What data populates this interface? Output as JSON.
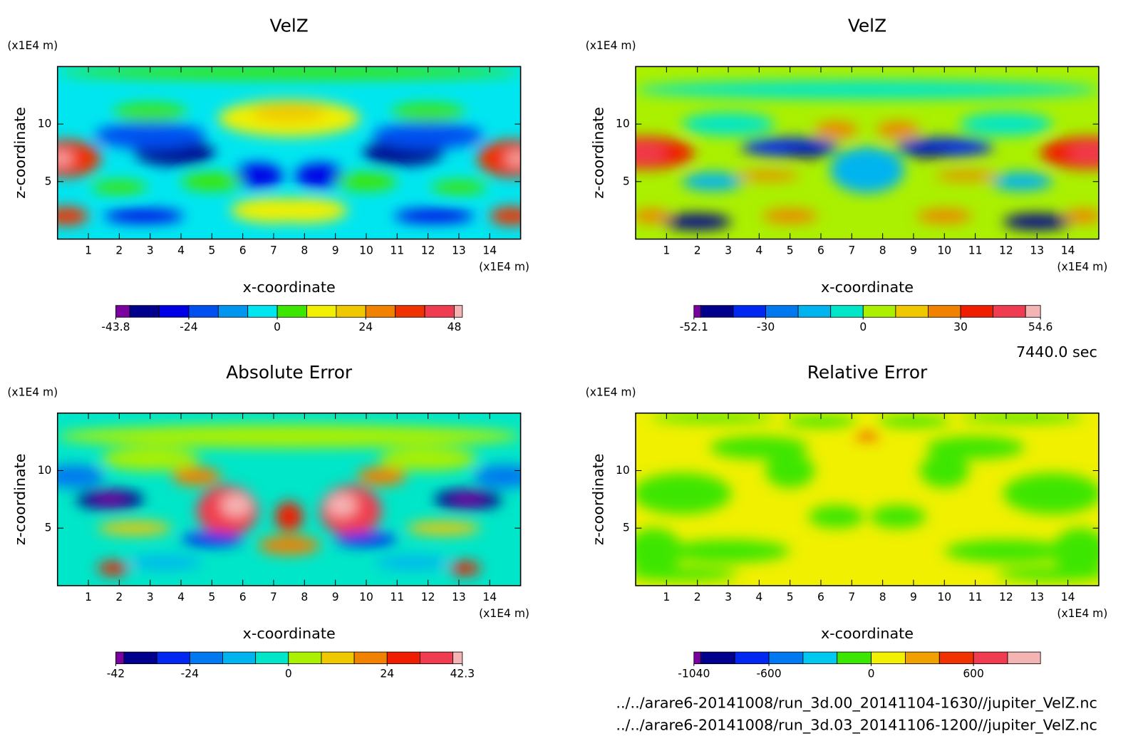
{
  "chart_data": [
    {
      "type": "contour",
      "title": "VelZ",
      "xunit": "(x1E4 m)",
      "yunit": "(x1E4 m)",
      "xlabel": "x-coordinate",
      "ylabel": "z-coordinate",
      "xlim": [
        0,
        15
      ],
      "xticks": [
        1,
        2,
        3,
        4,
        5,
        6,
        7,
        8,
        9,
        10,
        11,
        12,
        13,
        14
      ],
      "ylim": [
        0,
        15
      ],
      "yticks": [
        5,
        10
      ],
      "colorbar": {
        "levels": [
          -43.8,
          -40,
          -32,
          -24,
          -16,
          -8,
          0,
          8,
          16,
          24,
          32,
          40,
          48,
          50.2
        ],
        "colors": [
          "#7a00a0",
          "#00008c",
          "#0000e6",
          "#0050f0",
          "#0096f0",
          "#00e6f0",
          "#3ce600",
          "#f0f000",
          "#f0c800",
          "#f08200",
          "#f03200",
          "#f03c50",
          "#f5b4b4"
        ],
        "ticks": [
          -43.8,
          -24,
          0,
          24,
          48
        ]
      }
    },
    {
      "type": "contour",
      "title": "VelZ",
      "xunit": "(x1E4 m)",
      "yunit": "(x1E4 m)",
      "xlabel": "x-coordinate",
      "ylabel": "z-coordinate",
      "xlim": [
        0,
        15
      ],
      "xticks": [
        1,
        2,
        3,
        4,
        5,
        6,
        7,
        8,
        9,
        10,
        11,
        12,
        13,
        14
      ],
      "ylim": [
        0,
        15
      ],
      "yticks": [
        5,
        10
      ],
      "colorbar": {
        "levels": [
          -52.1,
          -50,
          -40,
          -30,
          -20,
          -10,
          0,
          10,
          20,
          30,
          40,
          50,
          54.6
        ],
        "colors": [
          "#7a00a0",
          "#00008c",
          "#0028f0",
          "#0078f0",
          "#00b4f0",
          "#00e6c8",
          "#aaf000",
          "#f0c800",
          "#f08200",
          "#f01e00",
          "#f03c50",
          "#f5b4b4"
        ],
        "ticks": [
          -52.1,
          -30,
          0,
          30,
          54.6
        ]
      }
    },
    {
      "type": "contour",
      "title": "Absolute Error",
      "xunit": "(x1E4 m)",
      "yunit": "(x1E4 m)",
      "xlabel": "x-coordinate",
      "ylabel": "z-coordinate",
      "xlim": [
        0,
        15
      ],
      "xticks": [
        1,
        2,
        3,
        4,
        5,
        6,
        7,
        8,
        9,
        10,
        11,
        12,
        13,
        14
      ],
      "ylim": [
        0,
        15
      ],
      "yticks": [
        5,
        10
      ],
      "colorbar": {
        "levels": [
          -42,
          -40,
          -32,
          -24,
          -16,
          -8,
          0,
          8,
          16,
          24,
          32,
          40,
          42.3
        ],
        "colors": [
          "#7a00a0",
          "#00008c",
          "#0028f0",
          "#0078f0",
          "#00b4f0",
          "#00e6c8",
          "#aaf000",
          "#f0c800",
          "#f08200",
          "#f01e00",
          "#f03c50",
          "#f5b4b4"
        ],
        "ticks": [
          -42,
          -24,
          0,
          24,
          42.3
        ]
      }
    },
    {
      "type": "contour",
      "title": "Relative Error",
      "xunit": "(x1E4 m)",
      "yunit": "(x1E4 m)",
      "xlabel": "x-coordinate",
      "ylabel": "z-coordinate",
      "xlim": [
        0,
        15
      ],
      "xticks": [
        1,
        2,
        3,
        4,
        5,
        6,
        7,
        8,
        9,
        10,
        11,
        12,
        13,
        14
      ],
      "ylim": [
        0,
        15
      ],
      "yticks": [
        5,
        10
      ],
      "colorbar": {
        "levels": [
          -1040,
          -1000,
          -800,
          -600,
          -400,
          -200,
          0,
          200,
          400,
          600,
          800,
          993
        ],
        "colors": [
          "#7a00a0",
          "#00008c",
          "#0028f0",
          "#0078f0",
          "#00c8f0",
          "#3ce600",
          "#f0f000",
          "#f0a000",
          "#f03200",
          "#f03c50",
          "#f5b4b4"
        ],
        "ticks": [
          -1040,
          -600,
          0,
          600
        ]
      }
    }
  ],
  "time": "7440.0 sec",
  "files": [
    "../../arare6-20141008/run_3d.00_20141104-1630//jupiter_VelZ.nc",
    "../../arare6-20141008/run_3d.03_20141106-1200//jupiter_VelZ.nc"
  ]
}
